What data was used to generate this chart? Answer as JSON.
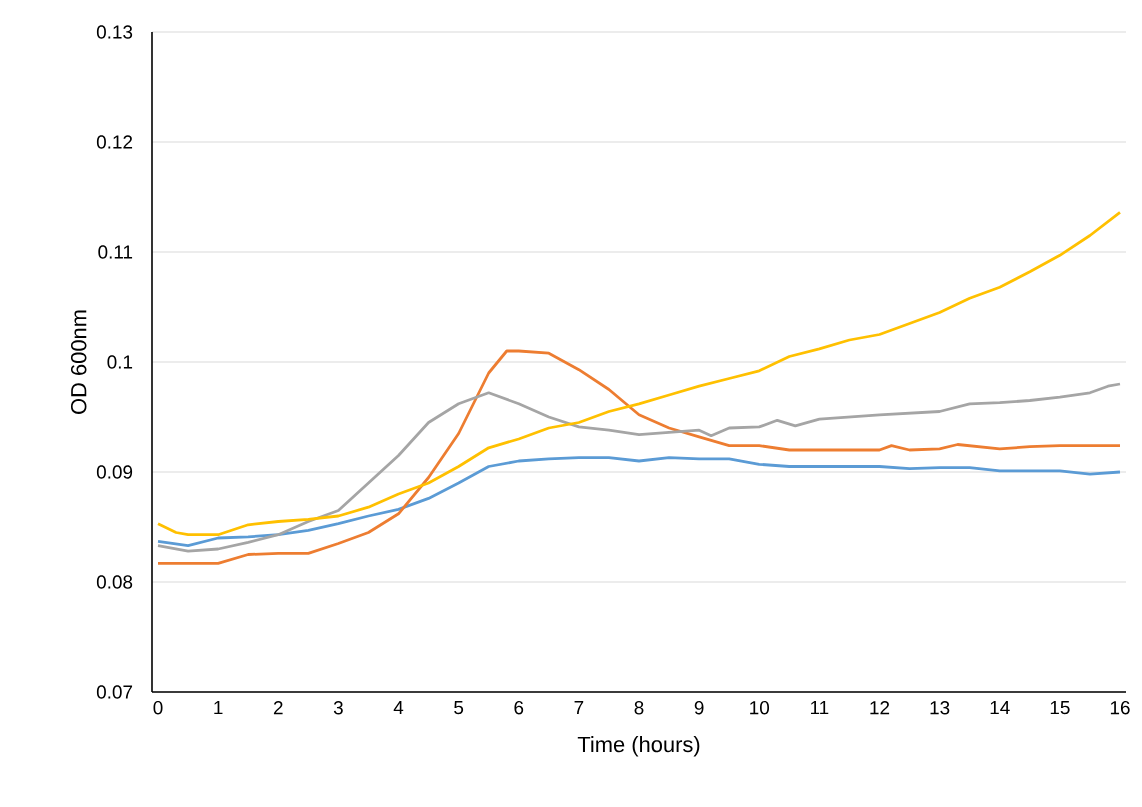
{
  "chart_data": {
    "type": "line",
    "xlabel": "Time (hours)",
    "ylabel": "OD 600nm",
    "xlim": [
      -0.1,
      16.1
    ],
    "xticks": [
      0,
      1,
      2,
      3,
      4,
      5,
      6,
      7,
      8,
      9,
      10,
      11,
      12,
      13,
      14,
      15,
      16
    ],
    "ylim": [
      0.07,
      0.13
    ],
    "yticks": [
      0.07,
      0.08,
      0.09,
      {
        "value": 0.1,
        "label": "0.1"
      },
      0.11,
      0.12,
      0.13
    ],
    "grid": "y",
    "marker": "none",
    "line_style": "solid",
    "series": [
      {
        "color": "#5b9bd5",
        "x": [
          0,
          0.5,
          1,
          1.5,
          2,
          2.5,
          3,
          3.5,
          4,
          4.5,
          5,
          5.5,
          6,
          6.5,
          7,
          7.5,
          8,
          8.5,
          9,
          9.5,
          10,
          10.5,
          11,
          12,
          12.5,
          13,
          13.5,
          14,
          14.5,
          15,
          15.5,
          16
        ],
        "values": [
          0.0837,
          0.0833,
          0.084,
          0.0841,
          0.0843,
          0.0847,
          0.0853,
          0.086,
          0.0866,
          0.0876,
          0.089,
          0.0905,
          0.091,
          0.0912,
          0.0913,
          0.0913,
          0.091,
          0.0913,
          0.0912,
          0.0912,
          0.0907,
          0.0905,
          0.0905,
          0.0905,
          0.0903,
          0.0904,
          0.0904,
          0.0901,
          0.0901,
          0.0901,
          0.0898,
          0.09
        ]
      },
      {
        "color": "#ed7d31",
        "x": [
          0,
          0.5,
          1,
          1.5,
          2,
          2.5,
          3,
          3.5,
          4,
          4.5,
          5,
          5.5,
          5.8,
          6,
          6.5,
          7,
          7.5,
          8,
          8.5,
          9,
          9.5,
          10,
          10.5,
          11,
          12,
          12.2,
          12.5,
          13,
          13.3,
          14,
          14.5,
          15,
          16
        ],
        "values": [
          0.0817,
          0.0817,
          0.0817,
          0.0825,
          0.0826,
          0.0826,
          0.0835,
          0.0845,
          0.0862,
          0.0895,
          0.0935,
          0.099,
          0.101,
          0.101,
          0.1008,
          0.0993,
          0.0975,
          0.0952,
          0.094,
          0.0932,
          0.0924,
          0.0924,
          0.092,
          0.092,
          0.092,
          0.0924,
          0.092,
          0.0921,
          0.0925,
          0.0921,
          0.0923,
          0.0924,
          0.0924
        ]
      },
      {
        "color": "#a5a5a5",
        "x": [
          0,
          0.5,
          1,
          1.5,
          2,
          2.5,
          3,
          3.5,
          4,
          4.5,
          5,
          5.5,
          6,
          6.5,
          7,
          7.5,
          8,
          8.5,
          9,
          9.2,
          9.5,
          10,
          10.3,
          10.6,
          11,
          12,
          13,
          13.5,
          14,
          14.5,
          15,
          15.5,
          15.8,
          16
        ],
        "values": [
          0.0833,
          0.0828,
          0.083,
          0.0836,
          0.0843,
          0.0855,
          0.0865,
          0.089,
          0.0915,
          0.0945,
          0.0962,
          0.0972,
          0.0962,
          0.095,
          0.0941,
          0.0938,
          0.0934,
          0.0936,
          0.0938,
          0.0933,
          0.094,
          0.0941,
          0.0947,
          0.0942,
          0.0948,
          0.0952,
          0.0955,
          0.0962,
          0.0963,
          0.0965,
          0.0968,
          0.0972,
          0.0978,
          0.098
        ]
      },
      {
        "color": "#ffc000",
        "x": [
          0,
          0.3,
          0.5,
          1,
          1.5,
          2,
          2.5,
          3,
          3.5,
          4,
          4.5,
          5,
          5.5,
          6,
          6.5,
          7,
          7.5,
          8,
          8.5,
          9,
          9.5,
          10,
          10.5,
          11,
          11.5,
          12,
          12.5,
          13,
          13.5,
          14,
          14.5,
          15,
          15.5,
          16
        ],
        "values": [
          0.0853,
          0.0845,
          0.0843,
          0.0843,
          0.0852,
          0.0855,
          0.0857,
          0.086,
          0.0868,
          0.088,
          0.089,
          0.0905,
          0.0922,
          0.093,
          0.094,
          0.0945,
          0.0955,
          0.0962,
          0.097,
          0.0978,
          0.0985,
          0.0992,
          0.1005,
          0.1012,
          0.102,
          0.1025,
          0.1035,
          0.1045,
          0.1058,
          0.1068,
          0.1082,
          0.1097,
          0.1115,
          0.1136
        ]
      }
    ]
  }
}
